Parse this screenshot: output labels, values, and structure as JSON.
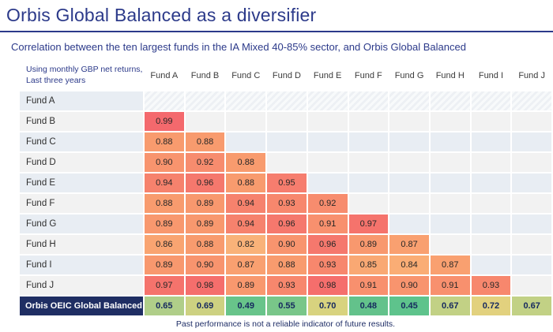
{
  "page": {
    "title": "Orbis Global Balanced as a diversifier",
    "subtitle": "Correlation between the ten largest funds in the IA Mixed 40-85% sector, and Orbis Global Balanced",
    "footnote": "Past performance is not a reliable indicator of future results."
  },
  "chart_data": {
    "type": "heatmap",
    "title": "Correlation between the ten largest funds in the IA Mixed 40-85% sector, and Orbis Global Balanced",
    "corner_label_lines": [
      "Using monthly GBP net returns,",
      "Last three years"
    ],
    "columns": [
      "Fund A",
      "Fund B",
      "Fund C",
      "Fund D",
      "Fund E",
      "Fund F",
      "Fund G",
      "Fund H",
      "Fund I",
      "Fund J"
    ],
    "rows": [
      {
        "label": "Fund A",
        "values": []
      },
      {
        "label": "Fund B",
        "values": [
          "0.99"
        ]
      },
      {
        "label": "Fund C",
        "values": [
          "0.88",
          "0.88"
        ]
      },
      {
        "label": "Fund D",
        "values": [
          "0.90",
          "0.92",
          "0.88"
        ]
      },
      {
        "label": "Fund E",
        "values": [
          "0.94",
          "0.96",
          "0.88",
          "0.95"
        ]
      },
      {
        "label": "Fund F",
        "values": [
          "0.88",
          "0.89",
          "0.94",
          "0.93",
          "0.92"
        ]
      },
      {
        "label": "Fund G",
        "values": [
          "0.89",
          "0.89",
          "0.94",
          "0.96",
          "0.91",
          "0.97"
        ]
      },
      {
        "label": "Fund H",
        "values": [
          "0.86",
          "0.88",
          "0.82",
          "0.90",
          "0.96",
          "0.89",
          "0.87"
        ]
      },
      {
        "label": "Fund I",
        "values": [
          "0.89",
          "0.90",
          "0.87",
          "0.88",
          "0.93",
          "0.85",
          "0.84",
          "0.87"
        ]
      },
      {
        "label": "Fund J",
        "values": [
          "0.97",
          "0.98",
          "0.89",
          "0.93",
          "0.98",
          "0.91",
          "0.90",
          "0.91",
          "0.93"
        ]
      },
      {
        "label": "Orbis OEIC Global Balanced",
        "highlight": true,
        "values": [
          "0.65",
          "0.69",
          "0.49",
          "0.55",
          "0.70",
          "0.48",
          "0.45",
          "0.67",
          "0.72",
          "0.67"
        ]
      }
    ],
    "value_colors": {
      "0.99": "#f4696d",
      "0.98": "#f56e6c",
      "0.97": "#f5736c",
      "0.96": "#f5786d",
      "0.95": "#f67d6e",
      "0.94": "#f6826d",
      "0.93": "#f7876d",
      "0.92": "#f78c6e",
      "0.91": "#f8906e",
      "0.90": "#f8946e",
      "0.89": "#f8986e",
      "0.88": "#f89b6e",
      "0.87": "#f9a070",
      "0.86": "#f9a471",
      "0.85": "#f9a873",
      "0.84": "#faad75",
      "0.82": "#f9b279",
      "0.72": "#e2d17e",
      "0.70": "#d8d37f",
      "0.69": "#cdd181",
      "0.67": "#c2d185",
      "0.65": "#b0ce89",
      "0.55": "#79c689",
      "0.49": "#68c48a",
      "0.48": "#63c28b",
      "0.45": "#5ec38c"
    },
    "style_colors": {
      "accent_navy": "#2c3a8a",
      "highlight_row_bg": "#1f2e63",
      "stripe_blue": "#e8edf3",
      "stripe_gray": "#f2f2f2"
    }
  }
}
